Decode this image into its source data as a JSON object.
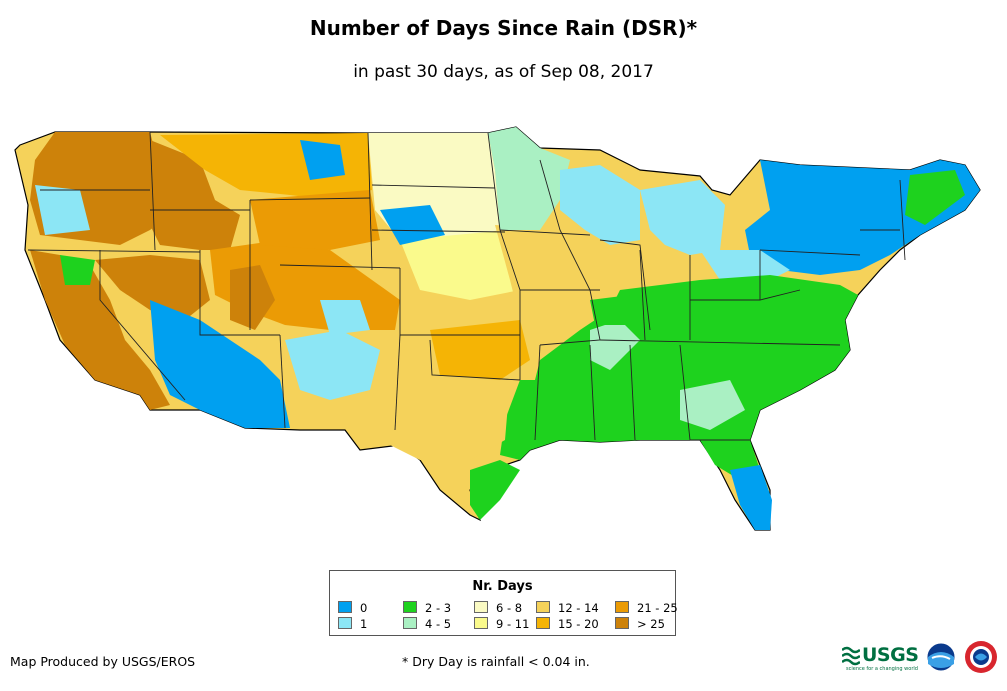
{
  "title": "Number of Days Since Rain (DSR)*",
  "subtitle": "in past 30 days, as of Sep 08, 2017",
  "legend": {
    "title": "Nr. Days",
    "items": [
      {
        "label": "0",
        "color": "#00a0f0"
      },
      {
        "label": "1",
        "color": "#8ce6f5"
      },
      {
        "label": "2 - 3",
        "color": "#1ed21e"
      },
      {
        "label": "4 - 5",
        "color": "#aaf0c3"
      },
      {
        "label": "6 - 8",
        "color": "#fafac3"
      },
      {
        "label": "9 - 11",
        "color": "#fafa8c"
      },
      {
        "label": "12 - 14",
        "color": "#f5d25a"
      },
      {
        "label": "15 - 20",
        "color": "#f5b405"
      },
      {
        "label": "21 - 25",
        "color": "#eb9b05"
      },
      {
        "label": "> 25",
        "color": "#cd820a"
      }
    ]
  },
  "credit": "Map Produced by USGS/EROS",
  "footnote": "* Dry Day is rainfall < 0.04 in.",
  "logos": {
    "usgs": "USGS",
    "usgs_tagline": "science for a changing world",
    "noaa_icon": "noaa-logo-icon",
    "nws_icon": "nws-logo-icon"
  }
}
